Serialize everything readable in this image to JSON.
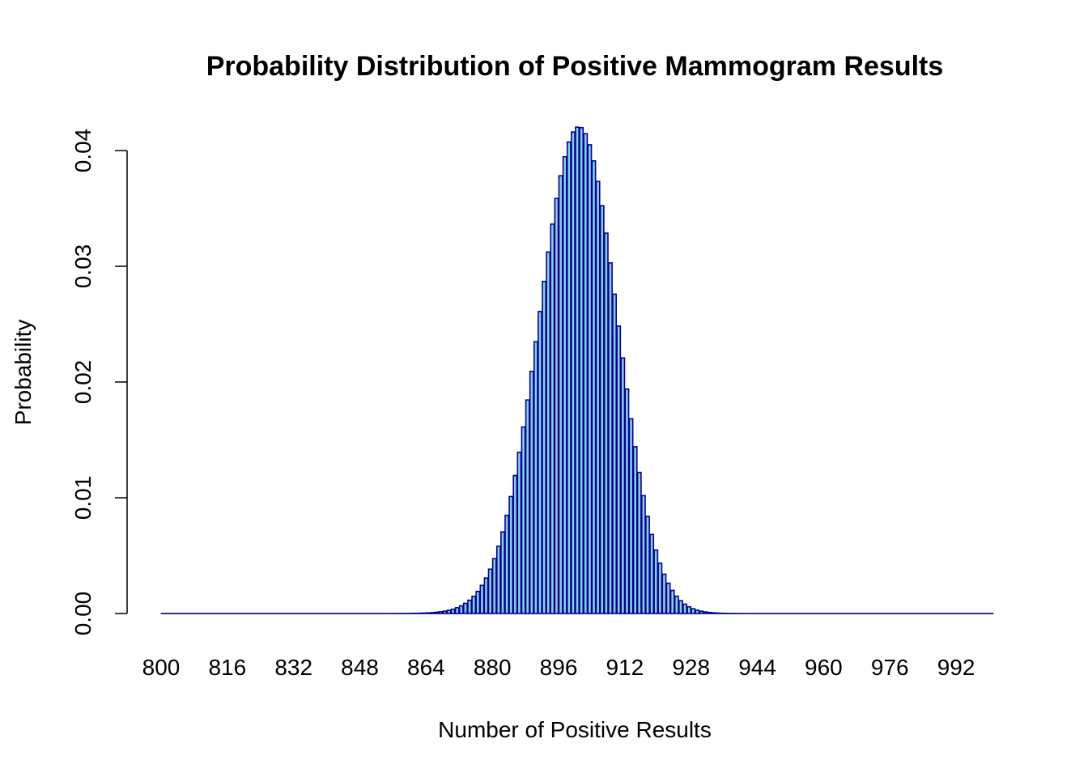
{
  "chart_data": {
    "type": "bar",
    "title": "Probability Distribution of Positive Mammogram Results",
    "xlabel": "Number of Positive Results",
    "ylabel": "Probability",
    "x_tick_labels": [
      "800",
      "816",
      "832",
      "848",
      "864",
      "880",
      "896",
      "912",
      "928",
      "944",
      "960",
      "976",
      "992"
    ],
    "y_tick_labels": [
      "0.00",
      "0.01",
      "0.02",
      "0.03",
      "0.04"
    ],
    "y_ticks": [
      0,
      0.01,
      0.02,
      0.03,
      0.04
    ],
    "x_range": [
      800,
      1000
    ],
    "ylim": [
      0,
      0.042
    ],
    "distribution": "binomial",
    "n": 1000,
    "p": 0.9,
    "bar_fill": "#87CEEB",
    "bar_border": "#00008B",
    "grid": false,
    "legend": "none"
  }
}
